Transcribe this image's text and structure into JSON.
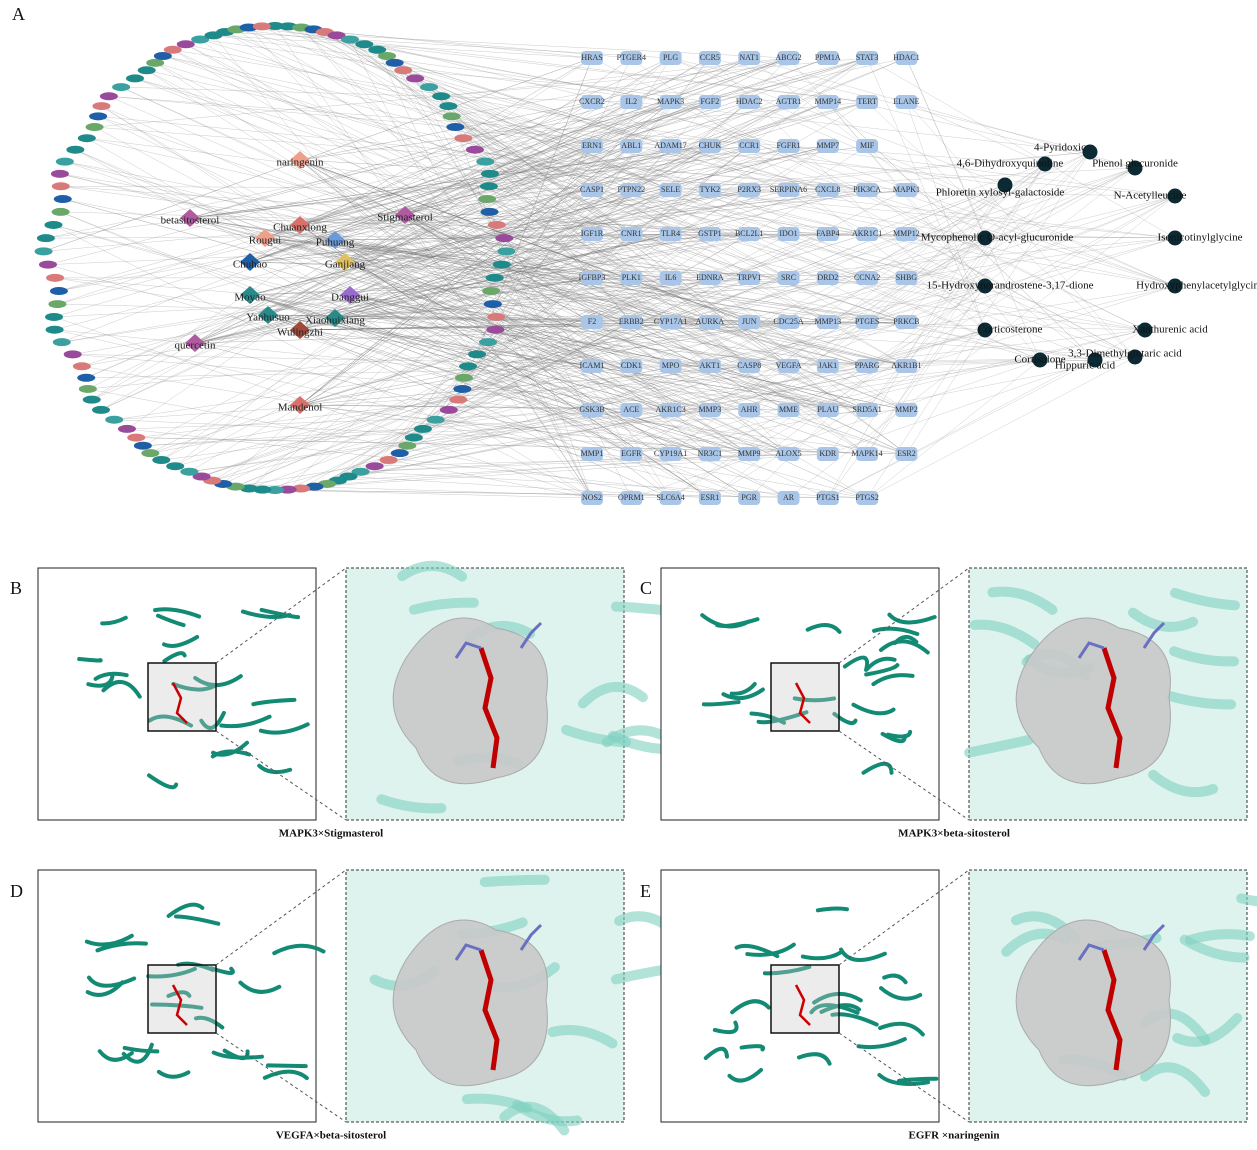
{
  "panels": {
    "labels": [
      "A",
      "B",
      "C",
      "D",
      "E"
    ]
  },
  "network": {
    "targets": [
      [
        "HRAS",
        "PTGER4",
        "PLG",
        "CCR5",
        "NAT1",
        "ABCG2",
        "PPM1A",
        "STAT3",
        "HDAC1"
      ],
      [
        "CXCR2",
        "IL2",
        "MAPK3",
        "FGF2",
        "HDAC2",
        "AGTR1",
        "MMP14",
        "TERT",
        "ELANE"
      ],
      [
        "ERN1",
        "ABL1",
        "ADAM17",
        "CHUK",
        "CCR1",
        "FGFR1",
        "MMP7",
        "MIF"
      ],
      [
        "CASP1",
        "PTPN22",
        "SELE",
        "TYK2",
        "P2RX3",
        "SERPINA6",
        "CXCL8",
        "PIK3CA",
        "MAPK1"
      ],
      [
        "IGF1R",
        "CNR1",
        "TLR4",
        "GSTP1",
        "BCL2L1",
        "IDO1",
        "FABP4",
        "AKR1C1",
        "MMP12"
      ],
      [
        "IGFBP3",
        "PLK1",
        "IL6",
        "EDNRA",
        "TRPV1",
        "SRC",
        "DRD2",
        "CCNA2",
        "SHBG"
      ],
      [
        "F2",
        "ERBB2",
        "CYP17A1",
        "AURKA",
        "JUN",
        "CDC25A",
        "MMP13",
        "PTGES",
        "PRKCB"
      ],
      [
        "ICAM1",
        "CDK1",
        "MPO",
        "AKT1",
        "CASP8",
        "VEGFA",
        "JAK1",
        "PPARG",
        "AKR1B1"
      ],
      [
        "GSK3B",
        "ACE",
        "AKR1C3",
        "MMP3",
        "AHR",
        "MME",
        "PLAU",
        "SRD5A1",
        "MMP2"
      ],
      [
        "MMP1",
        "EGFR",
        "CYP19A1",
        "NR3C1",
        "MMP9",
        "ALOX5",
        "KDR",
        "MAPK14",
        "ESR2"
      ],
      [
        "NOS2",
        "OPRM1",
        "SLC6A4",
        "ESR1",
        "PGR",
        "AR",
        "PTGS1",
        "PTGS2"
      ]
    ],
    "herbs": [
      "naringenin",
      "betasitosterol",
      "Stigmasterol",
      "Chuanxiong",
      "Rougui",
      "Puhuang",
      "Chuhao",
      "Ganjiang",
      "Moyao",
      "Danggui",
      "Yanhusuo",
      "Xiaohuixiang",
      "Wulingzhi",
      "quercetin",
      "Mandenol"
    ],
    "metabolites": [
      "4-Pyridoxic",
      "4,6-Dihydroxyquinoline",
      "Phenol glucuronide",
      "Phloretin xylosyl-galactoside",
      "N-Acetylleucine",
      "Mycophenolic O-acyl-glucuronide",
      "Isonicotinylglycine",
      "15-Hydroxynorandrostene-3,17-dione",
      "Hydroxyphenylacetylglycine",
      "Corticosterone",
      "Xanthurenic acid",
      "Cortisolone",
      "Hippuric acid",
      "3,3-Dimethylglutaric acid"
    ]
  },
  "docking": {
    "captions": [
      "MAPK3×Stigmasterol",
      "MAPK3×beta-sitosterol",
      "VEGFA×beta-sitosterol",
      "EGFR ×naringenin"
    ]
  }
}
